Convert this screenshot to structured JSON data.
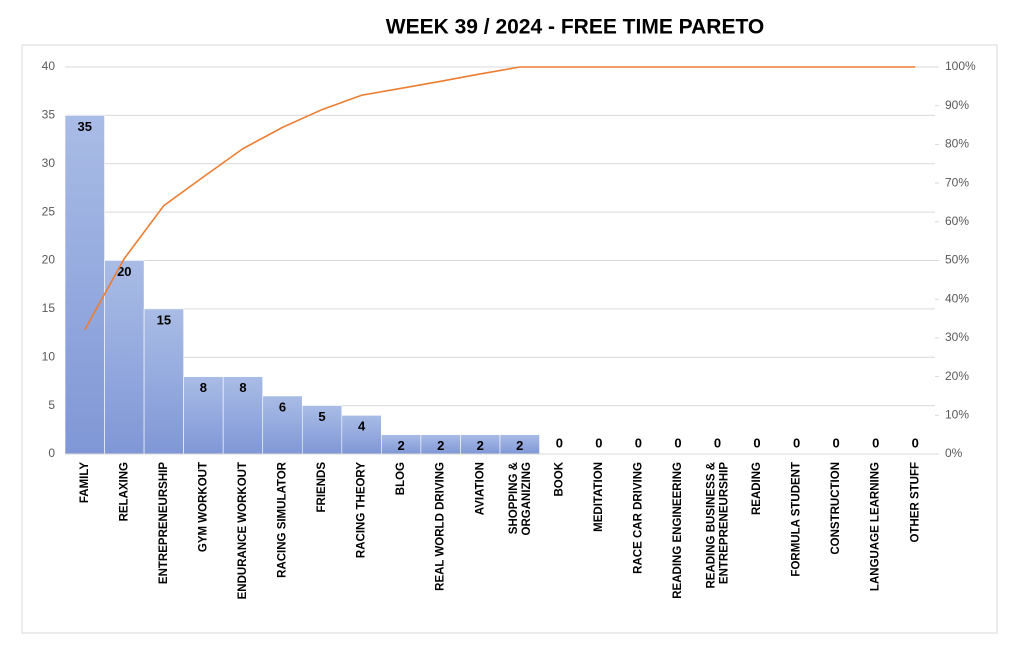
{
  "chart_data": {
    "type": "pareto",
    "title": "WEEK 39 / 2024  - FREE TIME PARETO",
    "categories": [
      "FAMILY",
      "RELAXING",
      "ENTREPRENEURSHIP",
      "GYM WORKOUT",
      "ENDURANCE WORKOUT",
      "RACING SIMULATOR",
      "FRIENDS",
      "RACING THEORY",
      "BLOG",
      "REAL WORLD DRIVING",
      "AVIATION",
      "SHOPPING & ORGANIZING",
      "BOOK",
      "MEDITATION",
      "RACE CAR DRIVING",
      "READING ENGINEERING",
      "READING BUSINESS & ENTREPRENEURSHIP",
      "READING",
      "FORMULA STUDENT",
      "CONSTRUCTION",
      "LANGUAGE LEARNING",
      "OTHER STUFF"
    ],
    "series": [
      {
        "type": "bar",
        "color": "#8fa6dc",
        "data_labels": true,
        "values": [
          35,
          20,
          15,
          8,
          8,
          6,
          5,
          4,
          2,
          2,
          2,
          2,
          0,
          0,
          0,
          0,
          0,
          0,
          0,
          0,
          0,
          0
        ]
      },
      {
        "type": "line",
        "axis": "y2",
        "color": "#ed7d31",
        "values": [
          32.1,
          50.5,
          64.2,
          71.6,
          78.9,
          84.4,
          89.0,
          92.7,
          94.5,
          96.3,
          98.2,
          100,
          100,
          100,
          100,
          100,
          100,
          100,
          100,
          100,
          100,
          100
        ]
      }
    ],
    "ylim": [
      0,
      40
    ],
    "yticks": [
      0,
      5,
      10,
      15,
      20,
      25,
      30,
      35,
      40
    ],
    "y2lim": [
      0,
      100
    ],
    "y2ticks": [
      {
        "value": 0,
        "label": "0%"
      },
      {
        "value": 10,
        "label": "10%"
      },
      {
        "value": 20,
        "label": "20%"
      },
      {
        "value": 30,
        "label": "30%"
      },
      {
        "value": 40,
        "label": "40%"
      },
      {
        "value": 50,
        "label": "50%"
      },
      {
        "value": 60,
        "label": "60%"
      },
      {
        "value": 70,
        "label": "70%"
      },
      {
        "value": 80,
        "label": "80%"
      },
      {
        "value": 90,
        "label": "90%"
      },
      {
        "value": 100,
        "label": "100%"
      }
    ],
    "grid": true
  }
}
